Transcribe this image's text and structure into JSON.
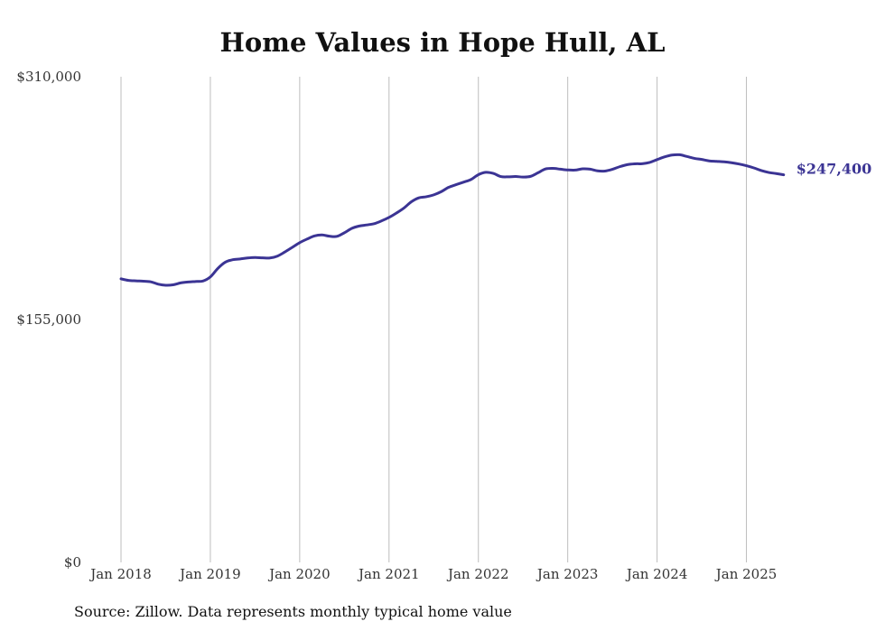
{
  "chart_data": {
    "type": "line",
    "title": "Home Values in Hope Hull, AL",
    "xlabel": "",
    "ylabel": "",
    "ylim": [
      0,
      310000
    ],
    "yticks": [
      {
        "value": 0,
        "label": "$0"
      },
      {
        "value": 155000,
        "label": "$155,000"
      },
      {
        "value": 310000,
        "label": "$310,000"
      }
    ],
    "xticks": [
      {
        "value": 2018,
        "label": "Jan 2018"
      },
      {
        "value": 2019,
        "label": "Jan 2019"
      },
      {
        "value": 2020,
        "label": "Jan 2020"
      },
      {
        "value": 2021,
        "label": "Jan 2021"
      },
      {
        "value": 2022,
        "label": "Jan 2022"
      },
      {
        "value": 2023,
        "label": "Jan 2023"
      },
      {
        "value": 2024,
        "label": "Jan 2024"
      },
      {
        "value": 2025,
        "label": "Jan 2025"
      }
    ],
    "xlim": [
      2018,
      2025.5
    ],
    "grid": "vertical",
    "series": [
      {
        "name": "Typical home value",
        "color": "#3b3494",
        "end_label": "$247,400",
        "x": [
          2018.0,
          2018.083,
          2018.167,
          2018.25,
          2018.333,
          2018.417,
          2018.5,
          2018.583,
          2018.667,
          2018.75,
          2018.833,
          2018.917,
          2019.0,
          2019.083,
          2019.167,
          2019.25,
          2019.333,
          2019.417,
          2019.5,
          2019.583,
          2019.667,
          2019.75,
          2019.833,
          2019.917,
          2020.0,
          2020.083,
          2020.167,
          2020.25,
          2020.333,
          2020.417,
          2020.5,
          2020.583,
          2020.667,
          2020.75,
          2020.833,
          2020.917,
          2021.0,
          2021.083,
          2021.167,
          2021.25,
          2021.333,
          2021.417,
          2021.5,
          2021.583,
          2021.667,
          2021.75,
          2021.833,
          2021.917,
          2022.0,
          2022.083,
          2022.167,
          2022.25,
          2022.333,
          2022.417,
          2022.5,
          2022.583,
          2022.667,
          2022.75,
          2022.833,
          2022.917,
          2023.0,
          2023.083,
          2023.167,
          2023.25,
          2023.333,
          2023.417,
          2023.5,
          2023.583,
          2023.667,
          2023.75,
          2023.833,
          2023.917,
          2024.0,
          2024.083,
          2024.167,
          2024.25,
          2024.333,
          2024.417,
          2024.5,
          2024.583,
          2024.667,
          2024.75,
          2024.833,
          2024.917,
          2025.0,
          2025.083,
          2025.167,
          2025.25,
          2025.333,
          2025.417
        ],
        "values": [
          181000,
          180000,
          179700,
          179500,
          179100,
          177600,
          176900,
          177200,
          178400,
          179000,
          179300,
          179600,
          182200,
          187600,
          191600,
          193200,
          193700,
          194300,
          194600,
          194400,
          194300,
          195500,
          198100,
          201100,
          204100,
          206400,
          208400,
          209000,
          208200,
          208100,
          210400,
          213200,
          214700,
          215400,
          216200,
          218000,
          220200,
          223000,
          226200,
          230200,
          232700,
          233400,
          234600,
          236600,
          239400,
          241100,
          242700,
          244400,
          247500,
          249000,
          248300,
          246300,
          246100,
          246300,
          246000,
          246400,
          248700,
          251100,
          251500,
          251000,
          250500,
          250400,
          251200,
          251000,
          249900,
          249800,
          250900,
          252600,
          253900,
          254400,
          254500,
          255300,
          257100,
          258800,
          260000,
          260200,
          259100,
          257900,
          257200,
          256300,
          256000,
          255700,
          255100,
          254300,
          253200,
          251800,
          250100,
          248900,
          248200,
          247400
        ]
      }
    ]
  },
  "source_note": "Source: Zillow. Data represents monthly typical home value"
}
